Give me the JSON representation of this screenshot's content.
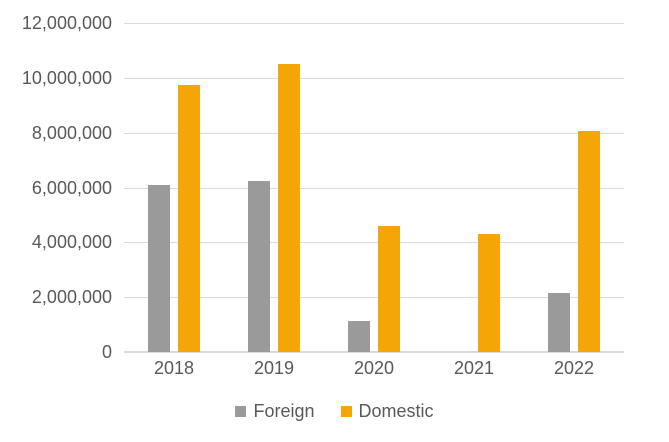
{
  "chart_data": {
    "type": "bar",
    "title": "",
    "xlabel": "",
    "ylabel": "",
    "categories": [
      "2018",
      "2019",
      "2020",
      "2021",
      "2022"
    ],
    "series": [
      {
        "name": "Foreign",
        "color": "#9A9A9A",
        "values": [
          6100000,
          6250000,
          1150000,
          0,
          2150000
        ]
      },
      {
        "name": "Domestic",
        "color": "#F4A606",
        "values": [
          9750000,
          10500000,
          4600000,
          4300000,
          8050000
        ]
      }
    ],
    "ylim": [
      0,
      12000000
    ],
    "yticks": [
      0,
      2000000,
      4000000,
      6000000,
      8000000,
      10000000,
      12000000
    ],
    "ytick_labels": [
      "0",
      "2,000,000",
      "4,000,000",
      "6,000,000",
      "8,000,000",
      "10,000,000",
      "12,000,000"
    ],
    "grid": "horizontal",
    "legend_position": "bottom",
    "colors": {
      "background": "#FFFFFF",
      "axis_text": "#595959",
      "gridline": "#D9D9D9",
      "axis_line": "#D9D9D9"
    }
  }
}
